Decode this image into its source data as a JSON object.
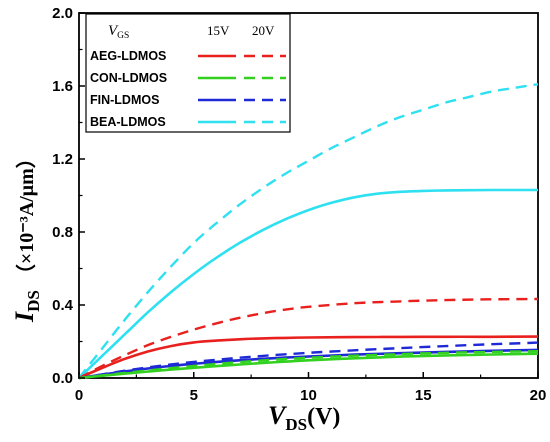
{
  "chart_data": {
    "type": "line",
    "xlabel": {
      "main": "V",
      "sub": "DS",
      "tail": "(V)"
    },
    "ylabel": {
      "main": "I",
      "sub": "DS",
      "tail": "（×10⁻³A/μm）"
    },
    "xlim": [
      0,
      20
    ],
    "ylim": [
      0,
      2.0
    ],
    "x_ticks": [
      "0",
      "5",
      "10",
      "15",
      "20"
    ],
    "y_ticks": [
      "0.0",
      "0.4",
      "0.8",
      "1.2",
      "1.6",
      "2.0"
    ],
    "grid": false,
    "legend": {
      "placement": "top-left",
      "header_main": "V",
      "header_sub": "GS",
      "col1": "15V",
      "col2": "20V"
    },
    "series": [
      {
        "name": "AEG-LDMOS",
        "color": "#e8201e",
        "x": [
          0,
          1,
          2,
          3,
          4,
          5,
          6,
          7,
          8,
          9,
          10,
          12,
          14,
          16,
          18,
          20
        ],
        "y15": [
          0,
          0.055,
          0.105,
          0.145,
          0.175,
          0.195,
          0.205,
          0.212,
          0.217,
          0.22,
          0.222,
          0.224,
          0.225,
          0.226,
          0.226,
          0.227
        ],
        "y20": [
          0,
          0.065,
          0.125,
          0.18,
          0.225,
          0.265,
          0.3,
          0.33,
          0.355,
          0.375,
          0.39,
          0.41,
          0.42,
          0.427,
          0.431,
          0.433
        ]
      },
      {
        "name": "CON-LDMOS",
        "color": "#33d11f",
        "x": [
          0,
          1,
          2,
          3,
          4,
          5,
          6,
          7,
          8,
          9,
          10,
          12,
          14,
          16,
          18,
          20
        ],
        "y15": [
          0,
          0.012,
          0.024,
          0.035,
          0.046,
          0.056,
          0.065,
          0.074,
          0.082,
          0.09,
          0.097,
          0.108,
          0.117,
          0.124,
          0.129,
          0.133
        ],
        "y20": [
          0,
          0.014,
          0.028,
          0.041,
          0.054,
          0.066,
          0.077,
          0.087,
          0.096,
          0.104,
          0.111,
          0.122,
          0.131,
          0.138,
          0.143,
          0.147
        ]
      },
      {
        "name": "FIN-LDMOS",
        "color": "#1f2ad6",
        "x": [
          0,
          1,
          2,
          3,
          4,
          5,
          6,
          7,
          8,
          9,
          10,
          12,
          14,
          16,
          18,
          20
        ],
        "y15": [
          0,
          0.018,
          0.036,
          0.052,
          0.066,
          0.078,
          0.088,
          0.097,
          0.105,
          0.112,
          0.118,
          0.128,
          0.136,
          0.143,
          0.149,
          0.154
        ],
        "y20": [
          0,
          0.02,
          0.04,
          0.058,
          0.074,
          0.088,
          0.1,
          0.111,
          0.121,
          0.13,
          0.138,
          0.152,
          0.164,
          0.175,
          0.185,
          0.194
        ]
      },
      {
        "name": "BEA-LDMOS",
        "color": "#2ee0f0",
        "x": [
          0,
          1,
          2,
          3,
          4,
          5,
          6,
          7,
          8,
          9,
          10,
          11,
          12,
          13,
          14,
          15,
          16,
          17,
          18,
          19,
          20
        ],
        "y15": [
          0,
          0.12,
          0.24,
          0.36,
          0.47,
          0.57,
          0.66,
          0.74,
          0.81,
          0.87,
          0.92,
          0.96,
          0.99,
          1.01,
          1.02,
          1.025,
          1.028,
          1.029,
          1.03,
          1.03,
          1.03
        ],
        "y20": [
          0,
          0.16,
          0.32,
          0.47,
          0.61,
          0.74,
          0.85,
          0.95,
          1.04,
          1.12,
          1.19,
          1.26,
          1.32,
          1.38,
          1.43,
          1.47,
          1.51,
          1.54,
          1.57,
          1.59,
          1.61
        ]
      }
    ]
  }
}
